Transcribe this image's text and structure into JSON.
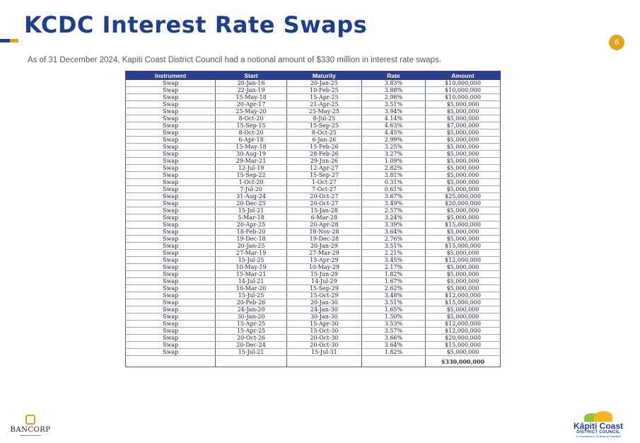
{
  "header": {
    "title": "KCDC Interest Rate Swaps",
    "page_number": "6",
    "subtitle": "As of 31 December 2024, Kapiti Coast District Council had a notional amount of $330 million in interest rate swaps."
  },
  "table": {
    "columns": [
      "Instrument",
      "Start",
      "Maturity",
      "Rate",
      "Amount"
    ],
    "rows": [
      [
        "Swap",
        "20-Jan-16",
        "20-Jan-25",
        "3.83%",
        "$10,000,000"
      ],
      [
        "Swap",
        "22-Jan-19",
        "10-Feb-25",
        "3.88%",
        "$10,000,000"
      ],
      [
        "Swap",
        "15-May-18",
        "15-Apr-25",
        "2.98%",
        "$10,000,000"
      ],
      [
        "Swap",
        "20-Apr-17",
        "21-Apr-25",
        "3.51%",
        "$5,000,000"
      ],
      [
        "Swap",
        "25-May-20",
        "25-May-25",
        "3.94%",
        "$5,000,000"
      ],
      [
        "Swap",
        "8-Oct-20",
        "8-Jul-25",
        "4.14%",
        "$5,000,000"
      ],
      [
        "Swap",
        "15-Sep-15",
        "15-Sep-25",
        "4.63%",
        "$7,000,000"
      ],
      [
        "Swap",
        "8-Oct-20",
        "8-Oct-25",
        "4.45%",
        "$5,000,000"
      ],
      [
        "Swap",
        "6-Apr-18",
        "6-Jan-26",
        "2.99%",
        "$5,000,000"
      ],
      [
        "Swap",
        "15-May-18",
        "15-Feb-26",
        "3.25%",
        "$5,000,000"
      ],
      [
        "Swap",
        "30-Aug-19",
        "28-Feb-26",
        "3.27%",
        "$5,000,000"
      ],
      [
        "Swap",
        "29-Mar-21",
        "29-Jun-26",
        "1.09%",
        "$5,000,000"
      ],
      [
        "Swap",
        "12-Jul-19",
        "12-Apr-27",
        "2.82%",
        "$5,000,000"
      ],
      [
        "Swap",
        "15-Sep-22",
        "15-Sep-27",
        "3.81%",
        "$5,000,000"
      ],
      [
        "Swap",
        "1-Oct-20",
        "1-Oct-27",
        "0.31%",
        "$5,000,000"
      ],
      [
        "Swap",
        "7-Jul-20",
        "7-Oct-27",
        "0.61%",
        "$5,000,000"
      ],
      [
        "Swap",
        "31-Aug-24",
        "20-Oct-27",
        "3.67%",
        "$25,000,000"
      ],
      [
        "Swap",
        "20-Dec-25",
        "20-Oct-27",
        "3.49%",
        "$20,000,000"
      ],
      [
        "Swap",
        "15-Jul-21",
        "15-Jan-28",
        "2.57%",
        "$5,000,000"
      ],
      [
        "Swap",
        "5-Mar-18",
        "6-Mar-28",
        "3.24%",
        "$5,000,000"
      ],
      [
        "Swap",
        "20-Apr-25",
        "20-Apr-28",
        "3.39%",
        "$15,000,000"
      ],
      [
        "Swap",
        "18-Feb-20",
        "18-Nov-28",
        "3.64%",
        "$5,000,000"
      ],
      [
        "Swap",
        "19-Dec-18",
        "19-Dec-28",
        "2.76%",
        "$5,000,000"
      ],
      [
        "Swap",
        "20-Jan-25",
        "20-Jan-29",
        "3.51%",
        "$15,000,000"
      ],
      [
        "Swap",
        "27-Mar-19",
        "27-Mar-29",
        "2.21%",
        "$5,000,000"
      ],
      [
        "Swap",
        "15-Jul-25",
        "15-Apr-29",
        "3.45%",
        "$12,000,000"
      ],
      [
        "Swap",
        "10-May-19",
        "10-May-29",
        "2.17%",
        "$5,000,000"
      ],
      [
        "Swap",
        "15-Mar-21",
        "15-Jun-29",
        "1.82%",
        "$5,000,000"
      ],
      [
        "Swap",
        "14-Jul-21",
        "14-Jul-29",
        "1.67%",
        "$5,000,000"
      ],
      [
        "Swap",
        "16-Mar-20",
        "15-Sep-29",
        "2.62%",
        "$5,000,000"
      ],
      [
        "Swap",
        "15-Jul-25",
        "15-Oct-29",
        "3.48%",
        "$12,000,000"
      ],
      [
        "Swap",
        "20-Feb-26",
        "20-Jan-30",
        "3.51%",
        "$15,000,000"
      ],
      [
        "Swap",
        "24-Jan-20",
        "24-Jan-30",
        "1.65%",
        "$5,000,000"
      ],
      [
        "Swap",
        "30-Jan-20",
        "30-Jan-30",
        "1.50%",
        "$5,000,000"
      ],
      [
        "Swap",
        "15-Apr-25",
        "15-Apr-30",
        "3.53%",
        "$12,000,000"
      ],
      [
        "Swap",
        "15-Apr-25",
        "15-Oct-30",
        "3.57%",
        "$12,000,000"
      ],
      [
        "Swap",
        "20-Oct-26",
        "20-Oct-30",
        "3.66%",
        "$20,000,000"
      ],
      [
        "Swap",
        "20-Dec-24",
        "20-Oct-30",
        "3.64%",
        "$15,000,000"
      ],
      [
        "Swap",
        "15-Jul-21",
        "15-Jul-31",
        "1.82%",
        "$5,000,000"
      ]
    ],
    "total": "$330,000,000"
  },
  "footer": {
    "left_logo_text": "BANCORP",
    "right_logo_name": "Kāpiti Coast",
    "right_logo_sub": "DISTRICT COUNCIL",
    "right_logo_tag": "Te Kaunihera o Te Ākau ki Paekākā",
    "colors": {
      "primary": "#1e3f8e",
      "accent": "#e7a21c",
      "header_fill": "#2e3f90"
    }
  }
}
